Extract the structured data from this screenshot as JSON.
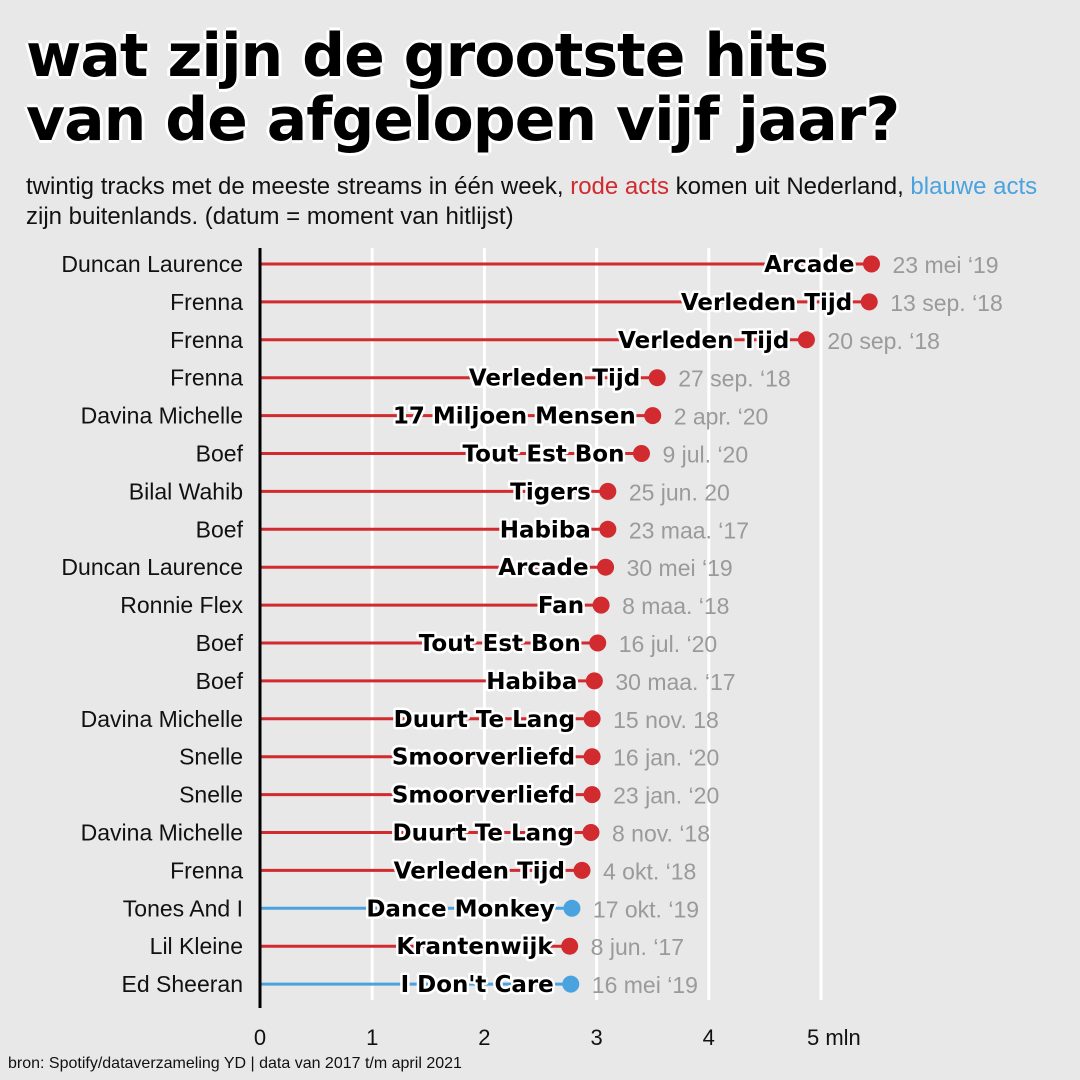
{
  "title": {
    "line1": "wat zijn de grootste hits",
    "line2": "van de afgelopen vijf jaar?"
  },
  "subtitle": {
    "part1": "twintig tracks met de meeste streams in één week, ",
    "red_text": "rode acts",
    "part2": " komen uit Nederland, ",
    "blue_text": "blauwe acts",
    "part3": " zijn buitenlands. (datum = moment van hitlijst)"
  },
  "source": "bron: Spotify/dataverzameling YD | data van 2017 t/m april 2021",
  "colors": {
    "dutch": "#d12a2f",
    "foreign": "#4aa3df",
    "date_text": "#9a9a9a",
    "gridline": "#ffffff",
    "axis": "#000000"
  },
  "chart_data": {
    "type": "bar",
    "style": "lollipop",
    "x_ticks": [
      "0",
      "1",
      "2",
      "3",
      "4",
      "5 mln"
    ],
    "xlim": [
      0,
      5
    ],
    "grid": true,
    "series": [
      {
        "artist": "Duncan Laurence",
        "song": "Arcade",
        "date": "23 mei ‘19",
        "value": 5.45,
        "origin": "dutch"
      },
      {
        "artist": "Frenna",
        "song": "Verleden Tijd",
        "date": "13 sep. ‘18",
        "value": 5.43,
        "origin": "dutch"
      },
      {
        "artist": "Frenna",
        "song": "Verleden Tijd",
        "date": "20 sep. ‘18",
        "value": 4.87,
        "origin": "dutch"
      },
      {
        "artist": "Frenna",
        "song": "Verleden Tijd",
        "date": "27 sep. ‘18",
        "value": 3.54,
        "origin": "dutch"
      },
      {
        "artist": "Davina Michelle",
        "song": "17 Miljoen Mensen",
        "date": "2 apr. ‘20",
        "value": 3.5,
        "origin": "dutch"
      },
      {
        "artist": "Boef",
        "song": "Tout Est Bon",
        "date": "9 jul. ‘20",
        "value": 3.4,
        "origin": "dutch"
      },
      {
        "artist": "Bilal Wahib",
        "song": "Tigers",
        "date": "25 jun. 20",
        "value": 3.1,
        "origin": "dutch"
      },
      {
        "artist": "Boef",
        "song": "Habiba",
        "date": "23 maa. ‘17",
        "value": 3.1,
        "origin": "dutch"
      },
      {
        "artist": "Duncan Laurence",
        "song": "Arcade",
        "date": "30 mei ‘19",
        "value": 3.08,
        "origin": "dutch"
      },
      {
        "artist": "Ronnie Flex",
        "song": "Fan",
        "date": "8 maa. ‘18",
        "value": 3.04,
        "origin": "dutch"
      },
      {
        "artist": "Boef",
        "song": "Tout Est Bon",
        "date": "16 jul. ‘20",
        "value": 3.01,
        "origin": "dutch"
      },
      {
        "artist": "Boef",
        "song": "Habiba",
        "date": "30 maa. ‘17",
        "value": 2.98,
        "origin": "dutch"
      },
      {
        "artist": "Davina Michelle",
        "song": "Duurt Te Lang",
        "date": "15 nov. 18",
        "value": 2.96,
        "origin": "dutch"
      },
      {
        "artist": "Snelle",
        "song": "Smoorverliefd",
        "date": "16 jan. ‘20",
        "value": 2.96,
        "origin": "dutch"
      },
      {
        "artist": "Snelle",
        "song": "Smoorverliefd",
        "date": "23 jan. ‘20",
        "value": 2.96,
        "origin": "dutch"
      },
      {
        "artist": "Davina Michelle",
        "song": "Duurt Te Lang",
        "date": "8 nov. ‘18",
        "value": 2.95,
        "origin": "dutch"
      },
      {
        "artist": "Frenna",
        "song": "Verleden Tijd",
        "date": "4 okt. ‘18",
        "value": 2.87,
        "origin": "dutch"
      },
      {
        "artist": "Tones And I",
        "song": "Dance Monkey",
        "date": "17 okt. ‘19",
        "value": 2.78,
        "origin": "foreign"
      },
      {
        "artist": "Lil Kleine",
        "song": "Krantenwijk",
        "date": "8 jun. ‘17",
        "value": 2.76,
        "origin": "dutch"
      },
      {
        "artist": "Ed Sheeran",
        "song": "I Don't Care",
        "date": "16 mei ‘19",
        "value": 2.77,
        "origin": "foreign"
      }
    ]
  }
}
